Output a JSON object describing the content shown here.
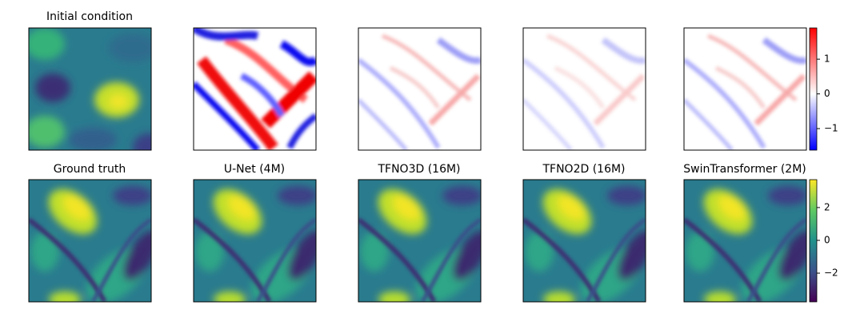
{
  "panels": {
    "titles": [
      "Initial condition",
      "Ground truth",
      "U-Net (4M)",
      "TFNO3D (16M)",
      "TFNO2D (16M)",
      "SwinTransformer (2M)"
    ]
  },
  "colorbars": [
    {
      "lim": [
        -1.62,
        1.9
      ],
      "ticks": [
        {
          "value": -1,
          "label": "−1"
        },
        0,
        1
      ]
    },
    {
      "lim": [
        -3.75,
        3.7
      ],
      "ticks": [
        {
          "value": -2,
          "label": "−2"
        },
        0,
        2
      ]
    }
  ]
}
